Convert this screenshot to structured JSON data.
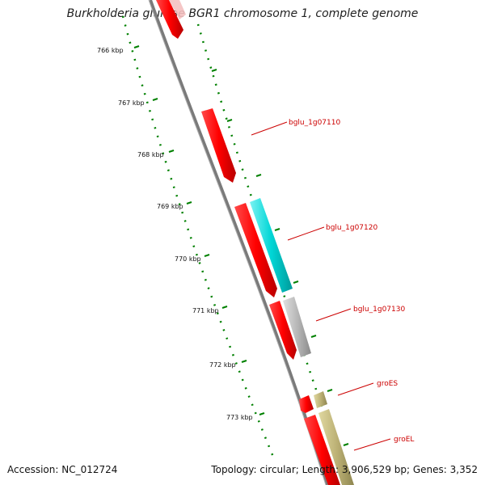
{
  "title": "Burkholderia glumae BGR1 chromosome 1, complete genome",
  "footer": {
    "accession": "Accession: NC_012724",
    "summary": "Topology: circular; Length: 3,906,529 bp; Genes: 3,352"
  },
  "colors": {
    "backbone": "#808080",
    "forward_gene": "#ff0000",
    "reverse_gene": "#ff0000",
    "gene_label": "#cc0000",
    "tick": "#008000",
    "cyan_gene": "#00cccc",
    "gray_gene": "#b4b4b4",
    "olive_gene": "#b8b070"
  },
  "ticks": [
    {
      "label": "766 kbp",
      "kbp": 766
    },
    {
      "label": "767 kbp",
      "kbp": 767
    },
    {
      "label": "768 kbp",
      "kbp": 768
    },
    {
      "label": "769 kbp",
      "kbp": 769
    },
    {
      "label": "770 kbp",
      "kbp": 770
    },
    {
      "label": "771 kbp",
      "kbp": 771
    },
    {
      "label": "772 kbp",
      "kbp": 772
    },
    {
      "label": "773 kbp",
      "kbp": 773
    }
  ],
  "gene_labels": [
    {
      "text": "bglu_1g07110"
    },
    {
      "text": "bglu_1g07120"
    },
    {
      "text": "bglu_1g07130"
    },
    {
      "text": "groES"
    },
    {
      "text": "groEL"
    }
  ]
}
